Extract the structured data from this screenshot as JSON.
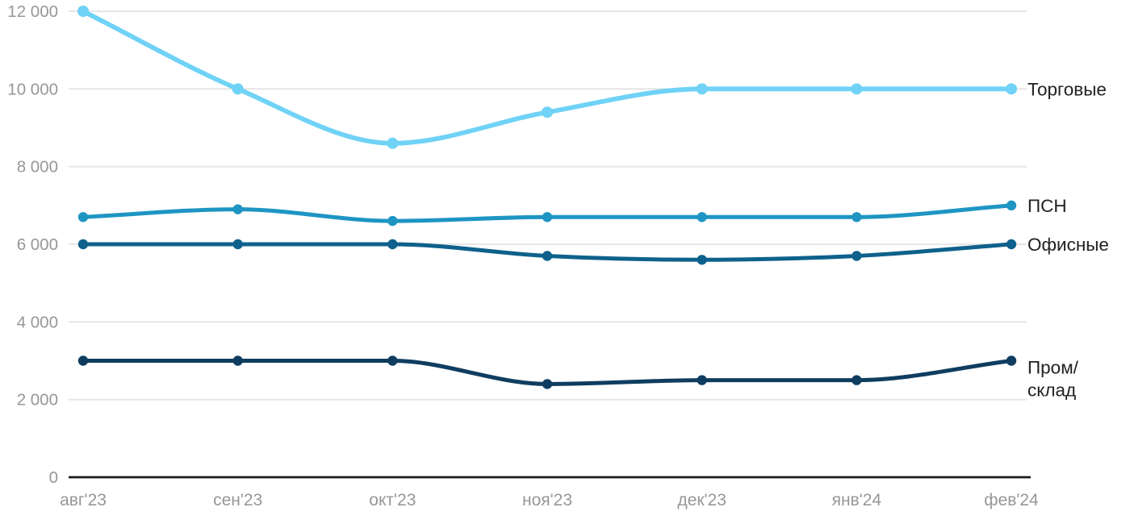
{
  "chart_data": {
    "type": "line",
    "x_categories": [
      "авг'23",
      "сен'23",
      "окт'23",
      "ноя'23",
      "дек'23",
      "янв'24",
      "фев'24"
    ],
    "y_ticks": [
      {
        "value": 0,
        "label": "0"
      },
      {
        "value": 2000,
        "label": "2 000"
      },
      {
        "value": 4000,
        "label": "4 000"
      },
      {
        "value": 6000,
        "label": "6 000"
      },
      {
        "value": 8000,
        "label": "8 000"
      },
      {
        "value": 10000,
        "label": "10 000"
      },
      {
        "value": 12000,
        "label": "12 000"
      }
    ],
    "ylim": [
      0,
      12000
    ],
    "grid": "horizontal",
    "legend_position": "labels-at-right-end-of-lines",
    "series": [
      {
        "id": "torgovye",
        "name": "Торговые",
        "label_lines": [
          "Торговые"
        ],
        "color": "#6FD2F6",
        "values": [
          12000,
          10000,
          8600,
          9400,
          10000,
          10000,
          10000
        ]
      },
      {
        "id": "psn",
        "name": "ПСН",
        "label_lines": [
          "ПСН"
        ],
        "color": "#1E95C3",
        "values": [
          6700,
          6900,
          6600,
          6700,
          6700,
          6700,
          7000
        ]
      },
      {
        "id": "ofisnye",
        "name": "Офисные",
        "label_lines": [
          "Офисные"
        ],
        "color": "#0E618C",
        "values": [
          6000,
          6000,
          6000,
          5700,
          5600,
          5700,
          6000
        ]
      },
      {
        "id": "prom-sklad",
        "name": "Пром/склад",
        "label_lines": [
          "Пром/",
          "склад"
        ],
        "color": "#0F3D60",
        "values": [
          3000,
          3000,
          3000,
          2400,
          2500,
          2500,
          3000
        ]
      }
    ]
  },
  "colors": {
    "background": "#ffffff",
    "gridline": "#e3e3e3",
    "axis": "#1d1d1d",
    "tick_label": "#979797",
    "series_label": "#212121"
  }
}
